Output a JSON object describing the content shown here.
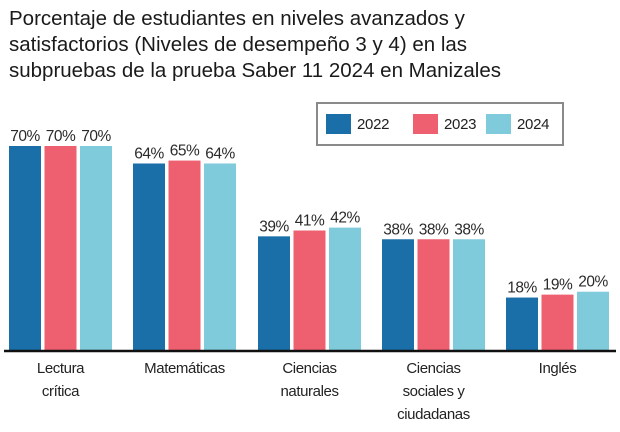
{
  "chart_data": {
    "type": "bar",
    "title_lines": [
      "Porcentaje de estudiantes en niveles avanzados y",
      "satisfactorios (Niveles de desempeño 3 y 4) en las",
      "subpruebas de la prueba Saber 11 2024 en Manizales"
    ],
    "xlabel": "",
    "ylabel": "",
    "ylim": [
      0,
      70
    ],
    "grid": false,
    "legend_position": "top-right",
    "value_suffix": "%",
    "categories": [
      [
        "Lectura",
        "crítica"
      ],
      [
        "Matemáticas"
      ],
      [
        "Ciencias",
        "naturales"
      ],
      [
        "Ciencias",
        "sociales y",
        "ciudadanas"
      ],
      [
        "Inglés"
      ]
    ],
    "series": [
      {
        "name": "2022",
        "color": "#1a6fa8",
        "values": [
          70,
          64,
          39,
          38,
          18
        ]
      },
      {
        "name": "2023",
        "color": "#ee5f70",
        "values": [
          70,
          65,
          41,
          38,
          19
        ]
      },
      {
        "name": "2024",
        "color": "#7fcadb",
        "values": [
          70,
          64,
          42,
          38,
          20
        ]
      }
    ]
  }
}
